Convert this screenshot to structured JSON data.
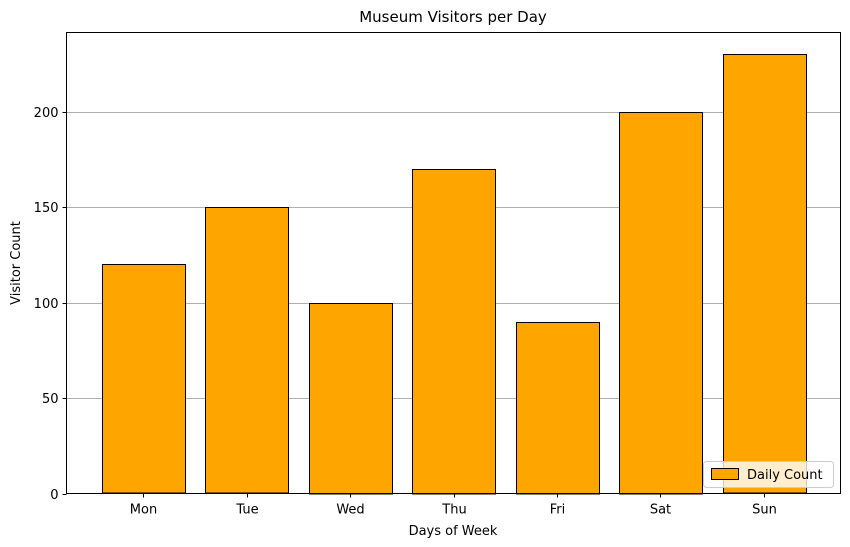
{
  "chart_data": {
    "type": "bar",
    "title": "Museum Visitors per Day",
    "xlabel": "Days of Week",
    "ylabel": "Visitor Count",
    "categories": [
      "Mon",
      "Tue",
      "Wed",
      "Thu",
      "Fri",
      "Sat",
      "Sun"
    ],
    "series": [
      {
        "name": "Daily Count",
        "values": [
          120,
          150,
          100,
          170,
          90,
          200,
          230
        ]
      }
    ],
    "ylim": [
      0,
      241.5
    ],
    "yticks": [
      0,
      50,
      100,
      150,
      200
    ],
    "grid": "y-major",
    "legend_position": "lower-right",
    "colors": {
      "bar_fill": "#FFA500",
      "bar_edge": "#000000",
      "grid": "#b0b0b0",
      "axis": "#000000"
    }
  }
}
